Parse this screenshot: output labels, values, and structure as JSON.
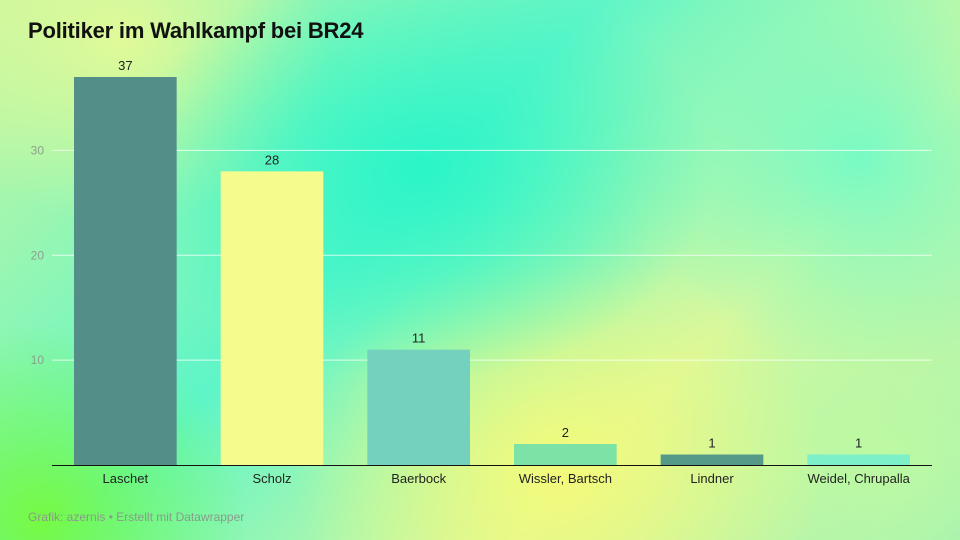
{
  "chart_data": {
    "type": "bar",
    "title": "Politiker im Wahlkampf bei BR24",
    "categories": [
      "Laschet",
      "Scholz",
      "Baerbock",
      "Wissler, Bartsch",
      "Lindner",
      "Weidel, Chrupalla"
    ],
    "values": [
      37,
      28,
      11,
      2,
      1,
      1
    ],
    "colors": [
      "#548e88",
      "#f5fb8c",
      "#74d1bd",
      "#7de2a5",
      "#559a88",
      "#7cf1c9"
    ],
    "yticks": [
      10,
      20,
      30
    ],
    "ylim": [
      0,
      37
    ],
    "grid": true,
    "xlabel": "",
    "ylabel": ""
  },
  "footer": "Grafik: azernis • Erstellt mit Datawrapper"
}
